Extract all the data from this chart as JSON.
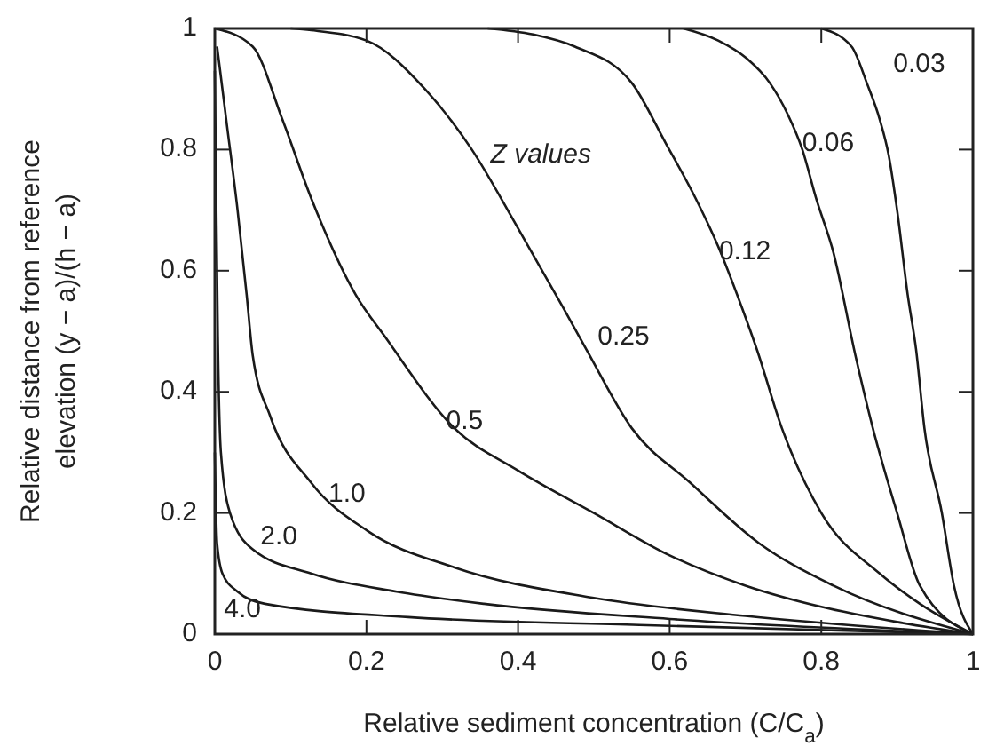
{
  "chart_data": {
    "type": "line",
    "xlabel": "Relative sediment concentration (C/C$_{a}$)",
    "ylabel": "Relative distance from reference elevation (y − a)/(h − a)",
    "legend_title": "Z values",
    "xlim": [
      0,
      1
    ],
    "ylim": [
      0,
      1
    ],
    "xticks": [
      0,
      0.2,
      0.4,
      0.6,
      0.8,
      1
    ],
    "yticks": [
      0,
      0.2,
      0.4,
      0.6,
      0.8,
      1
    ],
    "grid": false,
    "marker": "none",
    "line_style": "solid",
    "series": [
      {
        "name": "0.03",
        "color": "#1a1a1a",
        "x": [
          0.8,
          0.84,
          0.86,
          0.877,
          0.889,
          0.9,
          0.914,
          0.925,
          0.936,
          0.959,
          0.975,
          1
        ],
        "values": [
          1,
          0.97,
          0.91,
          0.85,
          0.79,
          0.7,
          0.56,
          0.47,
          0.34,
          0.2,
          0.08,
          0
        ]
      },
      {
        "name": "0.06",
        "color": "#1a1a1a",
        "x": [
          0.618,
          0.664,
          0.702,
          0.732,
          0.755,
          0.775,
          0.793,
          0.816,
          0.845,
          0.868,
          0.9,
          0.93,
          1
        ],
        "values": [
          1,
          0.98,
          0.95,
          0.91,
          0.86,
          0.8,
          0.72,
          0.63,
          0.46,
          0.34,
          0.2,
          0.08,
          0
        ]
      },
      {
        "name": "0.12",
        "color": "#1a1a1a",
        "x": [
          0.36,
          0.42,
          0.475,
          0.55,
          0.595,
          0.634,
          0.664,
          0.695,
          0.715,
          0.748,
          0.8,
          0.877,
          0.93,
          1
        ],
        "values": [
          1,
          0.99,
          0.97,
          0.91,
          0.81,
          0.72,
          0.64,
          0.54,
          0.47,
          0.34,
          0.2,
          0.1,
          0.05,
          0
        ]
      },
      {
        "name": "0.25",
        "color": "#1a1a1a",
        "x": [
          0.1,
          0.127,
          0.2,
          0.277,
          0.339,
          0.4,
          0.459,
          0.49,
          0.55,
          0.627,
          0.718,
          0.816,
          1
        ],
        "values": [
          1,
          0.997,
          0.98,
          0.9,
          0.8,
          0.67,
          0.54,
          0.47,
          0.34,
          0.25,
          0.15,
          0.08,
          0
        ]
      },
      {
        "name": "0.5",
        "color": "#1a1a1a",
        "x": [
          0,
          0.05,
          0.089,
          0.127,
          0.186,
          0.225,
          0.316,
          0.4,
          0.5,
          0.6,
          0.7,
          0.8,
          0.9,
          1
        ],
        "values": [
          1,
          0.97,
          0.85,
          0.72,
          0.56,
          0.49,
          0.34,
          0.27,
          0.2,
          0.13,
          0.08,
          0.045,
          0.02,
          0
        ]
      },
      {
        "name": "1.0",
        "color": "#1a1a1a",
        "x": [
          0.003,
          0.015,
          0.03,
          0.042,
          0.05,
          0.073,
          0.127,
          0.202,
          0.316,
          0.498,
          0.7,
          1
        ],
        "values": [
          0.97,
          0.85,
          0.7,
          0.56,
          0.46,
          0.36,
          0.25,
          0.17,
          0.11,
          0.06,
          0.03,
          0
        ]
      },
      {
        "name": "2.0",
        "color": "#1a1a1a",
        "x": [
          0,
          0.002,
          0.004,
          0.008,
          0.02,
          0.05,
          0.127,
          0.24,
          0.355,
          0.6,
          1
        ],
        "values": [
          0.93,
          0.7,
          0.49,
          0.3,
          0.2,
          0.14,
          0.1,
          0.07,
          0.05,
          0.025,
          0
        ]
      },
      {
        "name": "4.0",
        "color": "#1a1a1a",
        "x": [
          0,
          0.003,
          0.01,
          0.03,
          0.066,
          0.255,
          0.56,
          1
        ],
        "values": [
          0.3,
          0.15,
          0.1,
          0.07,
          0.05,
          0.028,
          0.015,
          0
        ]
      }
    ]
  }
}
